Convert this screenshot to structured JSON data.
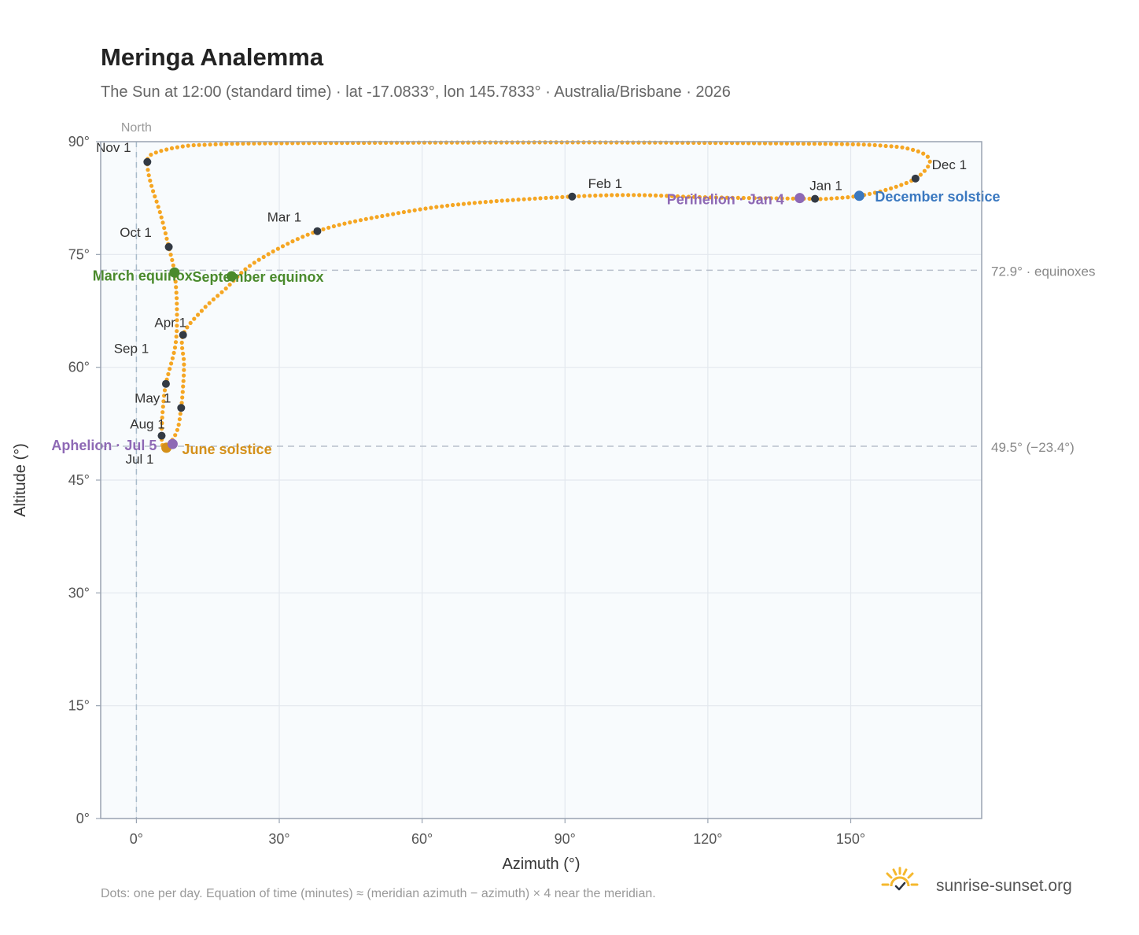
{
  "title": "Meringa Analemma",
  "subtitle": "The Sun at 12:00 (standard time) · lat -17.0833°, lon 145.7833° · Australia/Brisbane · 2026",
  "footnote": "Dots: one per day. Equation of time (minutes) ≈ (meridian azimuth − azimuth) × 4 near the meridian.",
  "brand": {
    "name": "sunrise-sunset.org",
    "logo_icon": "sun-logo-icon"
  },
  "colors": {
    "curve": "#f5a623",
    "marker": "#333a44",
    "equinox": "#4a8a2c",
    "june_solstice": "#d4901a",
    "december_solstice": "#3a78c0",
    "perihelion_aphelion": "#8e69b5",
    "reference": "#b8c0cc",
    "plot_bg": "#f8fbfd",
    "grid": "#e3e8ee",
    "frame": "#9aa4b2"
  },
  "chart_data": {
    "type": "scatter",
    "title": "Meringa Analemma",
    "xlabel": "Azimuth (°)",
    "ylabel": "Altitude (°)",
    "xlim": [
      -7.5,
      177.5
    ],
    "ylim": [
      0,
      90
    ],
    "xticks": [
      0,
      30,
      60,
      90,
      120,
      150
    ],
    "yticks": [
      0,
      15,
      30,
      45,
      60,
      75,
      90
    ],
    "x_tick_labels": [
      "0°",
      "30°",
      "60°",
      "90°",
      "120°",
      "150°"
    ],
    "y_tick_labels": [
      "0°",
      "15°",
      "30°",
      "45°",
      "60°",
      "75°",
      "90°"
    ],
    "grid": true,
    "north_marker": {
      "azimuth": 0,
      "label": "North"
    },
    "reference_lines": [
      {
        "altitude": 72.9,
        "label": "72.9° · equinoxes"
      },
      {
        "altitude": 49.5,
        "label": "49.5° (−23.4°)"
      }
    ],
    "month_markers": [
      {
        "label": "Jan 1",
        "azimuth": 142.5,
        "altitude": 82.4
      },
      {
        "label": "Feb 1",
        "azimuth": 91.5,
        "altitude": 82.7
      },
      {
        "label": "Mar 1",
        "azimuth": 38.0,
        "altitude": 78.1
      },
      {
        "label": "Apr 1",
        "azimuth": 9.8,
        "altitude": 64.3
      },
      {
        "label": "May 1",
        "azimuth": 9.4,
        "altitude": 54.6
      },
      {
        "label": "Jul 1",
        "azimuth": 6.3,
        "altitude": 49.3
      },
      {
        "label": "Aug 1",
        "azimuth": 5.3,
        "altitude": 50.9
      },
      {
        "label": "Sep 1",
        "azimuth": 6.2,
        "altitude": 57.8
      },
      {
        "label": "Oct 1",
        "azimuth": 6.8,
        "altitude": 76.0
      },
      {
        "label": "Nov 1",
        "azimuth": 2.3,
        "altitude": 87.3
      },
      {
        "label": "Dec 1",
        "azimuth": 163.6,
        "altitude": 85.1
      }
    ],
    "events": [
      {
        "label": "March equinox",
        "azimuth": 8.0,
        "altitude": 72.6,
        "color": "#4a8a2c"
      },
      {
        "label": "September equinox",
        "azimuth": 20.0,
        "altitude": 72.1,
        "color": "#4a8a2c"
      },
      {
        "label": "June solstice",
        "azimuth": 6.3,
        "altitude": 49.3,
        "color": "#d4901a"
      },
      {
        "label": "December solstice",
        "azimuth": 151.8,
        "altitude": 82.8,
        "color": "#3a78c0"
      },
      {
        "label": "Perihelion · Jan 4",
        "azimuth": 139.3,
        "altitude": 82.5,
        "color": "#8e69b5"
      },
      {
        "label": "Aphelion · Jul 5",
        "azimuth": 7.6,
        "altitude": 49.8,
        "color": "#8e69b5"
      }
    ],
    "path": [
      {
        "azimuth": 142.5,
        "altitude": 82.4
      },
      {
        "azimuth": 120.0,
        "altitude": 82.6
      },
      {
        "azimuth": 105.0,
        "altitude": 82.9
      },
      {
        "azimuth": 91.5,
        "altitude": 82.7
      },
      {
        "azimuth": 70.0,
        "altitude": 81.8
      },
      {
        "azimuth": 55.0,
        "altitude": 80.5
      },
      {
        "azimuth": 38.0,
        "altitude": 78.1
      },
      {
        "azimuth": 25.0,
        "altitude": 74.0
      },
      {
        "azimuth": 18.5,
        "altitude": 70.3
      },
      {
        "azimuth": 14.0,
        "altitude": 67.7
      },
      {
        "azimuth": 9.8,
        "altitude": 64.3
      },
      {
        "azimuth": 10.0,
        "altitude": 60.5
      },
      {
        "azimuth": 9.8,
        "altitude": 57.5
      },
      {
        "azimuth": 9.4,
        "altitude": 54.6
      },
      {
        "azimuth": 8.5,
        "altitude": 51.5
      },
      {
        "azimuth": 6.3,
        "altitude": 49.3
      },
      {
        "azimuth": 5.5,
        "altitude": 49.6
      },
      {
        "azimuth": 5.3,
        "altitude": 50.9
      },
      {
        "azimuth": 5.5,
        "altitude": 54.0
      },
      {
        "azimuth": 6.2,
        "altitude": 57.8
      },
      {
        "azimuth": 8.2,
        "altitude": 63.0
      },
      {
        "azimuth": 8.5,
        "altitude": 68.0
      },
      {
        "azimuth": 8.0,
        "altitude": 72.6
      },
      {
        "azimuth": 6.8,
        "altitude": 76.0
      },
      {
        "azimuth": 5.0,
        "altitude": 80.5
      },
      {
        "azimuth": 3.0,
        "altitude": 84.5
      },
      {
        "azimuth": 2.3,
        "altitude": 87.3
      },
      {
        "azimuth": 3.5,
        "altitude": 88.4
      },
      {
        "azimuth": 9.0,
        "altitude": 89.3
      },
      {
        "azimuth": 15.0,
        "altitude": 89.6
      },
      {
        "azimuth": 32.0,
        "altitude": 89.8
      },
      {
        "azimuth": 96.0,
        "altitude": 89.9
      },
      {
        "azimuth": 145.5,
        "altitude": 89.7
      },
      {
        "azimuth": 158.0,
        "altitude": 89.4
      },
      {
        "azimuth": 162.5,
        "altitude": 89.0
      },
      {
        "azimuth": 165.8,
        "altitude": 88.2
      },
      {
        "azimuth": 166.5,
        "altitude": 87.0
      },
      {
        "azimuth": 163.6,
        "altitude": 85.1
      },
      {
        "azimuth": 158.0,
        "altitude": 83.7
      },
      {
        "azimuth": 151.8,
        "altitude": 82.8
      },
      {
        "azimuth": 145.0,
        "altitude": 82.4
      },
      {
        "azimuth": 142.5,
        "altitude": 82.4
      }
    ]
  }
}
